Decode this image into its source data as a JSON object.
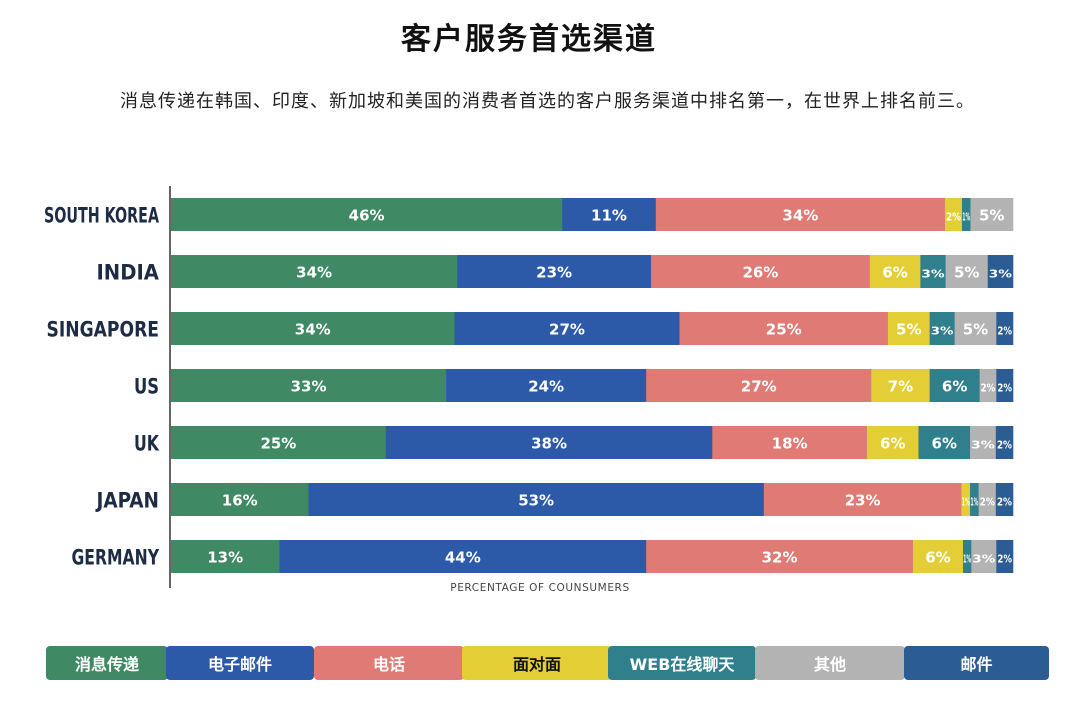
{
  "title": "客户服务首选渠道",
  "subtitle": "消息传递在韩国、印度、新加坡和美国的消费者首选的客户服务渠道中排名第一，在世界上排名前三。",
  "chart_data": {
    "type": "bar",
    "orientation": "horizontal-stacked-100",
    "xlabel": "PERCENTAGE OF COUNSUMERS",
    "categories": [
      "SOUTH KOREA",
      "INDIA",
      "SINGAPORE",
      "US",
      "UK",
      "JAPAN",
      "GERMANY"
    ],
    "series": [
      {
        "name": "消息传递",
        "color": "#3f8a64",
        "values": [
          46,
          34,
          34,
          33,
          25,
          16,
          13
        ]
      },
      {
        "name": "电子邮件",
        "color": "#2c5aa8",
        "values": [
          11,
          23,
          27,
          24,
          38,
          53,
          44
        ]
      },
      {
        "name": "电话",
        "color": "#e07a74",
        "values": [
          34,
          26,
          25,
          27,
          18,
          23,
          32
        ]
      },
      {
        "name": "面对面",
        "color": "#e3cf35",
        "values": [
          2,
          6,
          5,
          7,
          6,
          1,
          6
        ]
      },
      {
        "name": "WEB在线聊天",
        "color": "#2f7f8d",
        "values": [
          1,
          3,
          3,
          6,
          6,
          1,
          1
        ]
      },
      {
        "name": "其他",
        "color": "#b3b3b3",
        "values": [
          5,
          5,
          5,
          2,
          3,
          2,
          3
        ]
      },
      {
        "name": "邮件",
        "color": "#2b5c94",
        "values": [
          0,
          3,
          2,
          2,
          2,
          2,
          2
        ]
      }
    ],
    "value_suffix": "%",
    "legend_position": "bottom",
    "grid": false
  },
  "legend": [
    {
      "label": "消息传递",
      "color": "#3f8a64",
      "text_dark": false
    },
    {
      "label": "电子邮件",
      "color": "#2c5aa8",
      "text_dark": false
    },
    {
      "label": "电话",
      "color": "#e07a74",
      "text_dark": false
    },
    {
      "label": "面对面",
      "color": "#e3cf35",
      "text_dark": true
    },
    {
      "label": "WEB在线聊天",
      "color": "#2f7f8d",
      "text_dark": false
    },
    {
      "label": "其他",
      "color": "#b3b3b3",
      "text_dark": false
    },
    {
      "label": "邮件",
      "color": "#2b5c94",
      "text_dark": false
    }
  ]
}
